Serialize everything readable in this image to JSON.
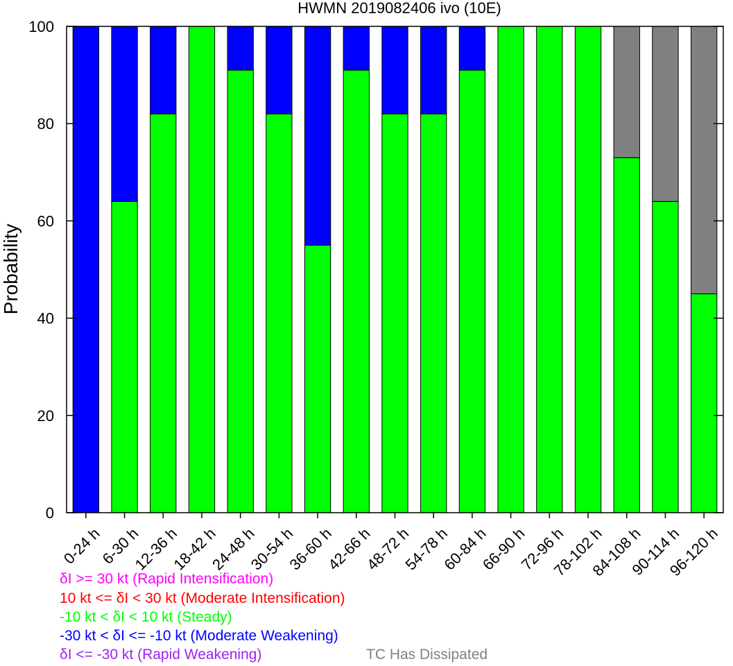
{
  "chart_data": {
    "type": "bar",
    "stacked": true,
    "title": "HWMN 2019082406 ivo (10E)",
    "ylabel": "Probability",
    "xlabel": "",
    "ylim": [
      0,
      100
    ],
    "yticks": [
      0,
      20,
      40,
      60,
      80,
      100
    ],
    "categories": [
      "0-24 h",
      "6-30 h",
      "12-36 h",
      "18-42 h",
      "24-48 h",
      "30-54 h",
      "36-60 h",
      "42-66 h",
      "48-72 h",
      "54-78 h",
      "60-84 h",
      "66-90 h",
      "72-96 h",
      "78-102 h",
      "84-108 h",
      "90-114 h",
      "96-120 h"
    ],
    "series": [
      {
        "name": "δI >= 30 kt (Rapid Intensification)",
        "color": "#ff00ff",
        "values": [
          0,
          0,
          0,
          0,
          0,
          0,
          0,
          0,
          0,
          0,
          0,
          0,
          0,
          0,
          0,
          0,
          0
        ]
      },
      {
        "name": "10 kt <= δI < 30 kt (Moderate Intensification)",
        "color": "#ff0000",
        "values": [
          0,
          0,
          0,
          0,
          0,
          0,
          0,
          0,
          0,
          0,
          0,
          0,
          0,
          0,
          0,
          0,
          0
        ]
      },
      {
        "name": "-10 kt < δI < 10 kt (Steady)",
        "color": "#00ff00",
        "values": [
          0,
          64,
          82,
          100,
          91,
          82,
          55,
          91,
          82,
          82,
          91,
          100,
          100,
          100,
          73,
          64,
          45
        ]
      },
      {
        "name": "-30 kt < δI <= -10 kt (Moderate Weakening)",
        "color": "#0000ff",
        "values": [
          100,
          36,
          18,
          0,
          9,
          18,
          45,
          9,
          18,
          18,
          9,
          0,
          0,
          0,
          0,
          0,
          0
        ]
      },
      {
        "name": "δI <= -30 kt (Rapid Weakening)",
        "color": "#a020f0",
        "values": [
          0,
          0,
          0,
          0,
          0,
          0,
          0,
          0,
          0,
          0,
          0,
          0,
          0,
          0,
          0,
          0,
          0
        ]
      },
      {
        "name": "TC Has Dissipated",
        "color": "#808080",
        "values": [
          0,
          0,
          0,
          0,
          0,
          0,
          0,
          0,
          0,
          0,
          0,
          0,
          0,
          0,
          27,
          36,
          55
        ]
      }
    ],
    "legend": [
      "δI >= 30 kt (Rapid Intensification)",
      "10 kt <= δI < 30 kt (Moderate Intensification)",
      "-10 kt < δI < 10 kt (Steady)",
      "-30 kt < δI <= -10 kt (Moderate Weakening)",
      "δI <= -30 kt (Rapid Weakening)",
      "TC Has Dissipated"
    ],
    "legend_colors": [
      "#ff00ff",
      "#ff0000",
      "#00ff00",
      "#0000ff",
      "#a020f0",
      "#808080"
    ],
    "legend_placement": "bottom",
    "grid": false
  }
}
